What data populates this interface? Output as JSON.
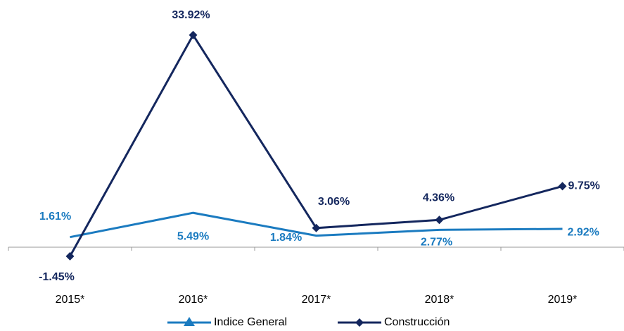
{
  "chart_data": {
    "type": "line",
    "categories": [
      "2015*",
      "2016*",
      "2017*",
      "2018*",
      "2019*"
    ],
    "series": [
      {
        "name": "Indice General",
        "color": "#1b7bc0",
        "values": [
          1.61,
          5.49,
          1.84,
          2.77,
          2.92
        ],
        "value_labels": [
          "1.61%",
          "5.49%",
          "1.84%",
          "2.77%",
          "2.92%"
        ]
      },
      {
        "name": "Construcción",
        "color": "#14275e",
        "values": [
          -1.45,
          33.92,
          3.06,
          4.36,
          9.75
        ],
        "value_labels": [
          "-1.45%",
          "33.92%",
          "3.06%",
          "4.36%",
          "9.75%"
        ]
      }
    ],
    "ylim": [
      -3,
      36
    ],
    "grid": false
  }
}
